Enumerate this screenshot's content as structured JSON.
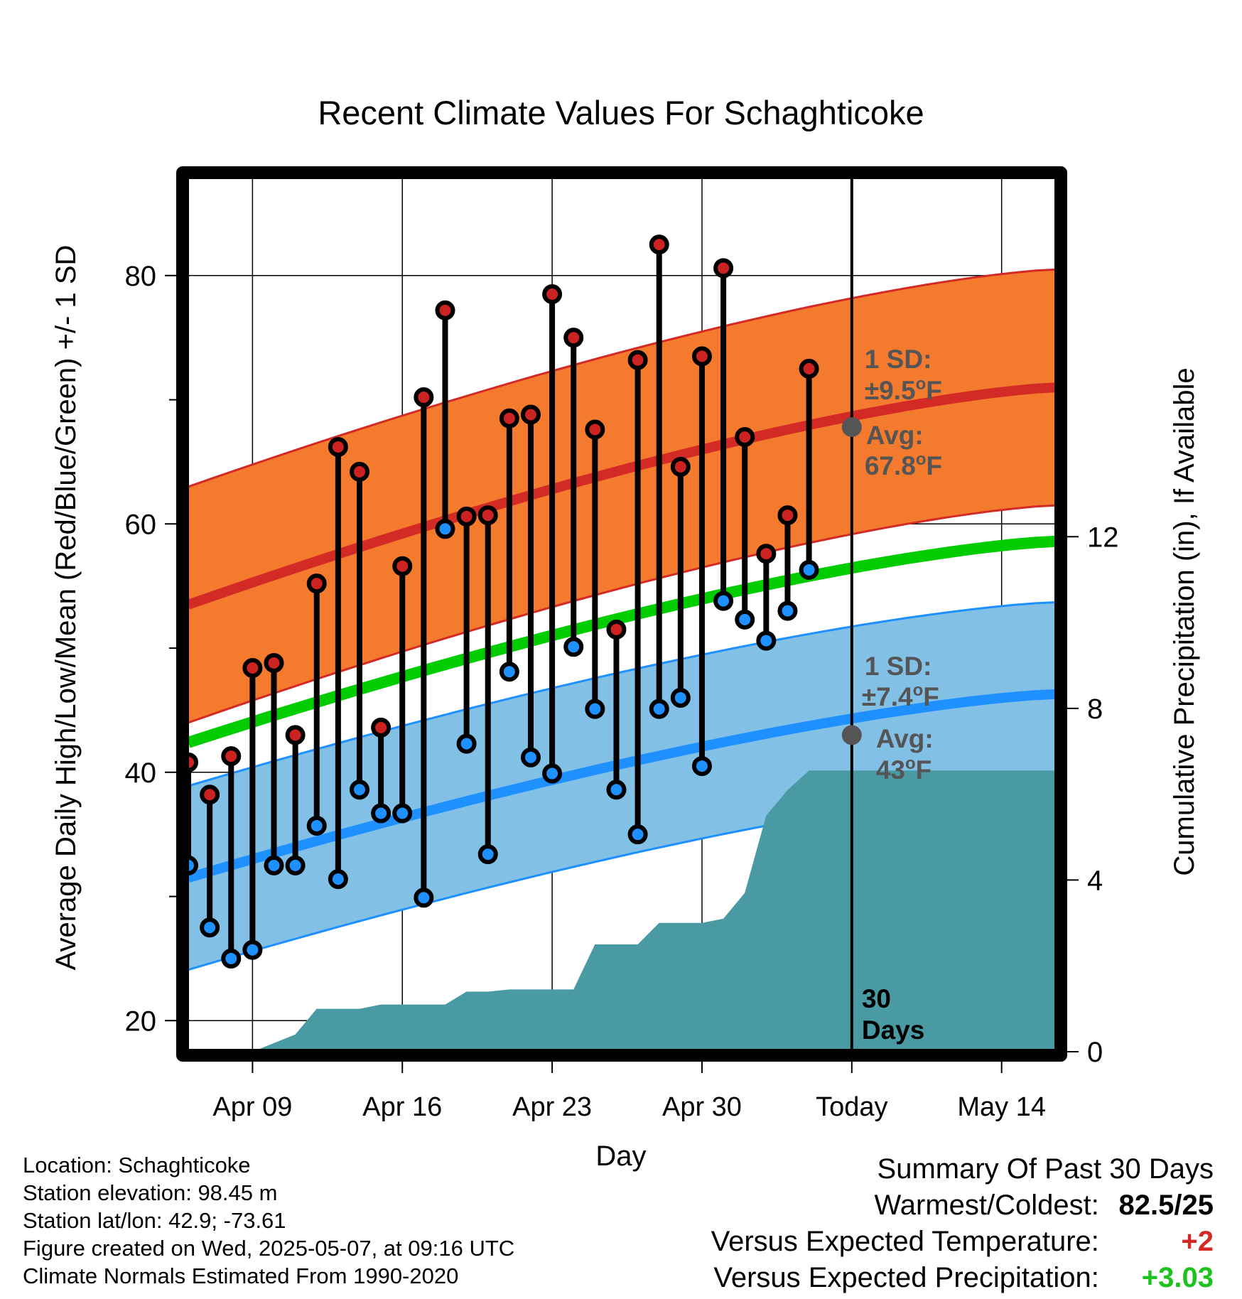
{
  "chart_data": {
    "type": "line",
    "title": "Recent Climate Values For Schaghticoke",
    "xlabel": "Day",
    "ylabel": "Average Daily High/Low/Mean (Red/Blue/Green) +/- 1 SD",
    "y2label": "Cumulative Precipitation (in), If Available",
    "x_ticks": [
      "Apr 09",
      "Apr 16",
      "Apr 23",
      "Apr 30",
      "Today",
      "May 14"
    ],
    "x_tick_days": [
      9,
      16,
      23,
      30,
      37,
      44
    ],
    "xlim": [
      5.9,
      46.6
    ],
    "ylim": [
      17.5,
      88
    ],
    "y_ticks": [
      20,
      40,
      60,
      80
    ],
    "y2lim": [
      0,
      20.4
    ],
    "y2_ticks": [
      0,
      4,
      8,
      12
    ],
    "today_day": 37,
    "series": [
      {
        "name": "Normal High",
        "x": [
          6,
          46.6
        ],
        "values": [
          53.5,
          71.0
        ],
        "sd": 9.5,
        "color": "#d42a26",
        "band_color": "#f47a2e"
      },
      {
        "name": "Normal Low",
        "x": [
          6,
          46.6
        ],
        "values": [
          31.5,
          46.3
        ],
        "sd": 7.4,
        "color": "#1e90ff",
        "band_color": "#82c0e6"
      },
      {
        "name": "Normal Mean",
        "x": [
          6,
          46.6
        ],
        "values": [
          42.4,
          58.6
        ],
        "color": "#00cc00"
      }
    ],
    "observed_days": [
      6,
      7,
      8,
      9,
      10,
      11,
      12,
      13,
      14,
      15,
      16,
      17,
      18,
      19,
      20,
      21,
      22,
      23,
      24,
      25,
      26,
      27,
      28,
      29,
      30,
      31,
      32,
      33,
      34,
      35,
      36
    ],
    "observed_high": [
      40.8,
      38.2,
      41.3,
      48.4,
      48.8,
      43.0,
      55.2,
      66.2,
      64.2,
      43.6,
      56.6,
      70.2,
      77.2,
      60.6,
      60.7,
      68.5,
      68.8,
      78.5,
      75.0,
      67.6,
      51.5,
      73.2,
      82.5,
      64.6,
      73.5,
      80.6,
      67.0,
      57.6,
      60.7,
      72.5,
      null
    ],
    "observed_low": [
      32.5,
      27.5,
      25.0,
      25.7,
      32.5,
      32.5,
      35.7,
      31.4,
      38.6,
      36.7,
      36.7,
      29.9,
      59.6,
      42.3,
      33.4,
      48.1,
      41.2,
      39.9,
      50.1,
      45.1,
      38.6,
      35.0,
      45.1,
      46.0,
      40.5,
      53.8,
      52.3,
      50.6,
      53.0,
      56.3,
      null
    ],
    "observed_high_color": "#cc2222",
    "observed_low_color": "#1e90ff",
    "precip_cumulative_x": [
      6,
      7,
      8,
      9,
      10,
      11,
      12,
      13,
      14,
      15,
      16,
      17,
      18,
      19,
      20,
      21,
      22,
      23,
      24,
      25,
      26,
      27,
      28,
      29,
      30,
      31,
      32,
      33,
      34,
      35,
      36,
      37,
      46.6
    ],
    "precip_cumulative": [
      0,
      0,
      0,
      0,
      0.2,
      0.4,
      1.0,
      1.0,
      1.0,
      1.1,
      1.1,
      1.1,
      1.1,
      1.4,
      1.4,
      1.45,
      1.45,
      1.45,
      1.45,
      2.5,
      2.5,
      2.5,
      3.0,
      3.0,
      3.0,
      3.1,
      3.7,
      5.5,
      6.1,
      6.55,
      6.55,
      6.55,
      6.55
    ],
    "precip_color": "#4a9aa4",
    "annotations": {
      "high_sd_label": "1 SD:",
      "high_sd_value": "±9.5",
      "high_avg_label": "Avg:",
      "high_avg_value": "67.8",
      "low_sd_label": "1 SD:",
      "low_sd_value": "±7.4",
      "low_avg_label": "Avg:",
      "low_avg_value": "43",
      "degree_symbol": "o",
      "unit": "F",
      "high_avg_temp": 67.8,
      "low_avg_temp": 43.0,
      "days_line1": "30",
      "days_line2": "Days"
    }
  },
  "info": {
    "location": "Location: Schaghticoke",
    "elevation": "Station elevation: 98.45 m",
    "latlon": "Station lat/lon: 42.9; -73.61",
    "created": "Figure created on Wed, 2025-05-07, at 09:16 UTC",
    "normals": "Climate Normals Estimated From 1990-2020"
  },
  "summary": {
    "title": "Summary Of Past 30 Days",
    "warmest_label": "Warmest/Coldest:",
    "warmest_value": "82.5/25",
    "temp_label": "Versus Expected Temperature:",
    "temp_value": "+2",
    "temp_color": "#d42a26",
    "precip_label": "Versus Expected Precipitation:",
    "precip_value": "+3.03",
    "precip_color": "#1ec21e"
  }
}
